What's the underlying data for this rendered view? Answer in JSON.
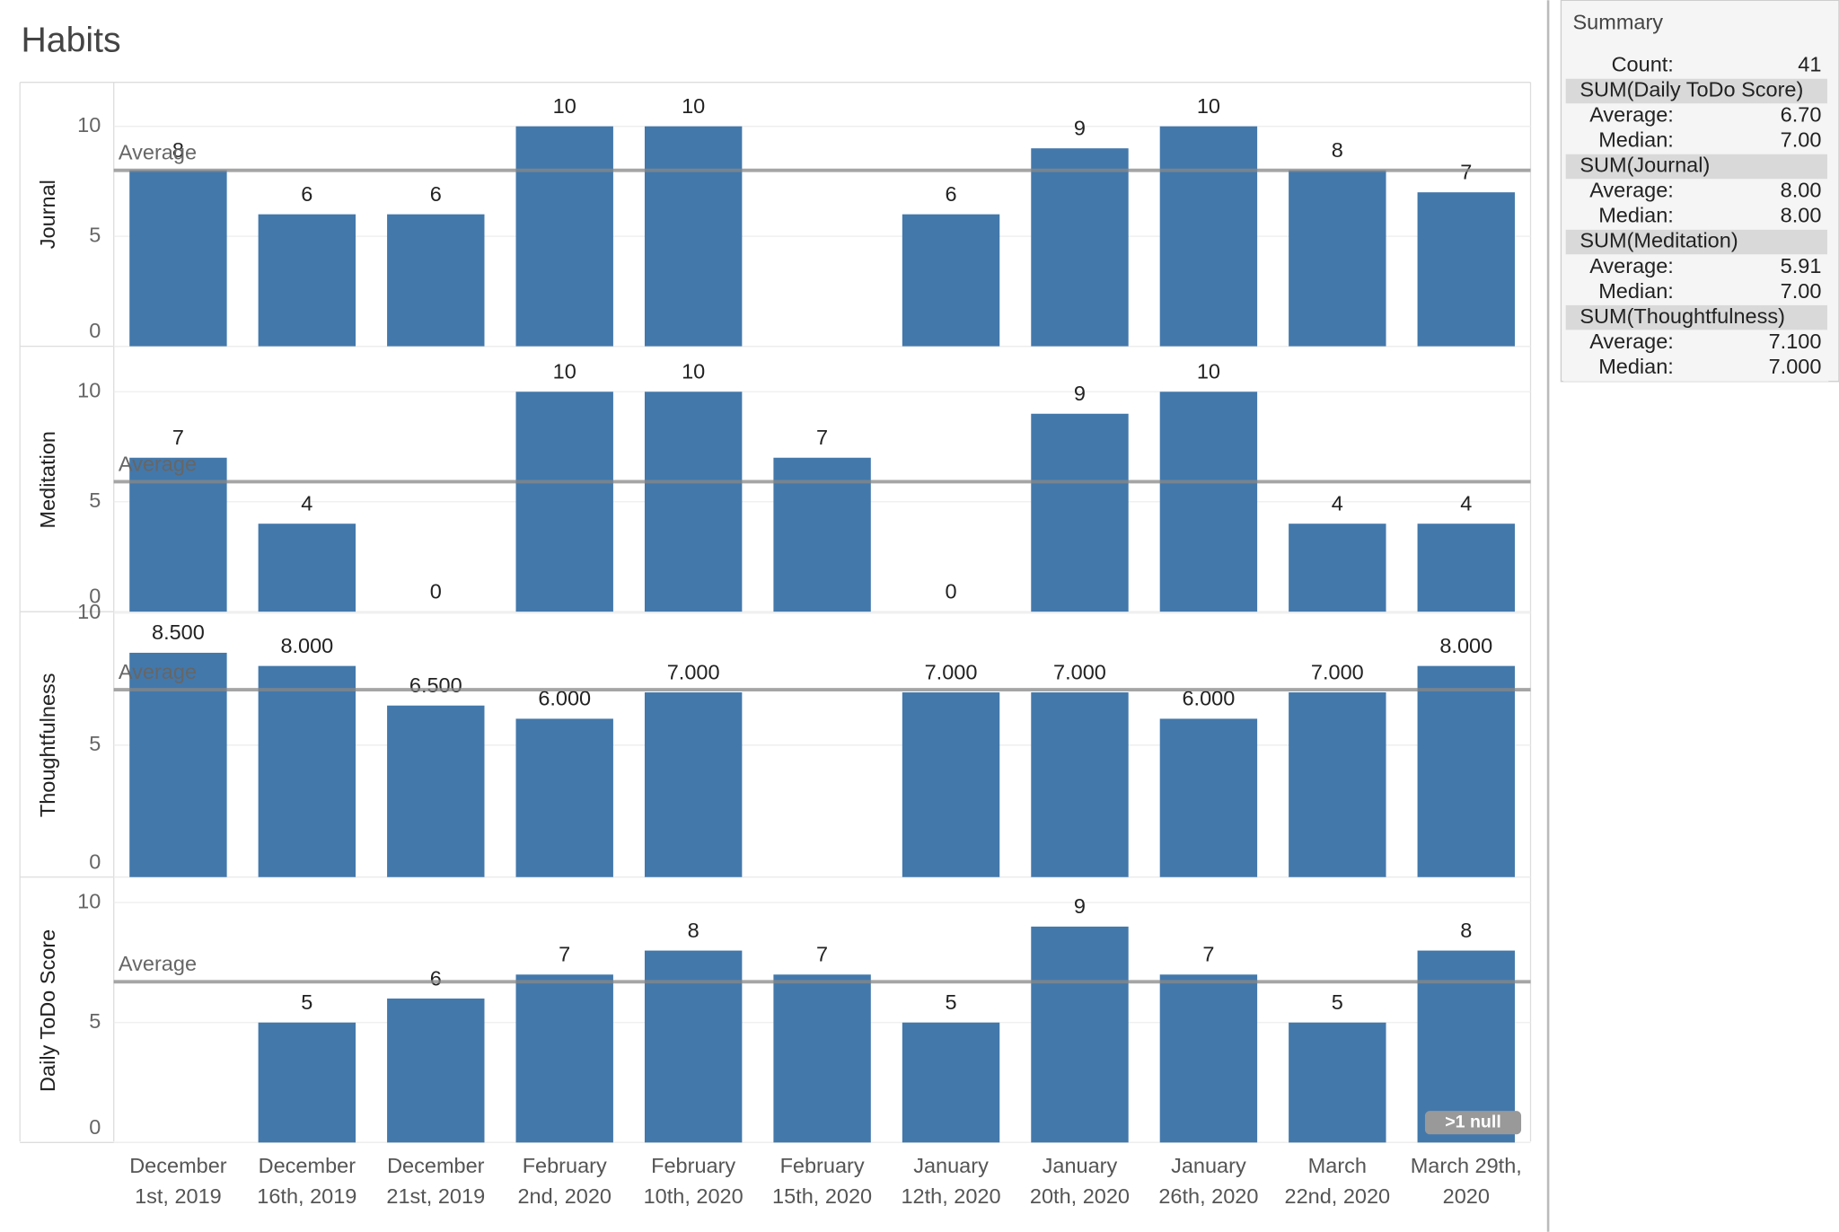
{
  "chart_data": {
    "type": "bar",
    "title": "Habits",
    "color": "#4378ab",
    "categories": [
      "December\n1st, 2019",
      "December\n16th, 2019",
      "December\n21st, 2019",
      "February\n2nd, 2020",
      "February\n10th, 2020",
      "February\n15th, 2020",
      "January\n12th, 2020",
      "January\n20th, 2020",
      "January\n26th, 2020",
      "March\n22nd, 2020",
      "March 29th,\n2020"
    ],
    "average_label": "Average",
    "null_note": ">1 null",
    "panels": [
      {
        "name": "Journal",
        "values": [
          8,
          6,
          6,
          10,
          10,
          null,
          6,
          9,
          10,
          8,
          7
        ],
        "ylim": [
          0,
          12
        ],
        "yticks": [
          0,
          5,
          10
        ]
      },
      {
        "name": "Meditation",
        "values": [
          7,
          4,
          0,
          10,
          10,
          7,
          0,
          9,
          10,
          4,
          4
        ],
        "ylim": [
          0,
          12
        ],
        "yticks": [
          0,
          5,
          10
        ]
      },
      {
        "name": "Thoughtfulness",
        "values": [
          8.5,
          8,
          6.5,
          6,
          7,
          null,
          7,
          7,
          6,
          7,
          8
        ],
        "value_labels": [
          "8.500",
          "8.000",
          "6.500",
          "6.000",
          "7.000",
          null,
          "7.000",
          "7.000",
          "6.000",
          "7.000",
          "8.000"
        ],
        "ylim": [
          0,
          10
        ],
        "yticks": [
          0,
          5,
          10
        ]
      },
      {
        "name": "Daily ToDo Score",
        "values": [
          null,
          5,
          6,
          7,
          8,
          7,
          5,
          9,
          7,
          5,
          8
        ],
        "ylim": [
          0,
          11
        ],
        "yticks": [
          0,
          5,
          10
        ]
      }
    ]
  },
  "summary": {
    "title": "Summary",
    "count": {
      "label": "Count:",
      "value": 41
    },
    "groups": [
      {
        "title": "SUM(Daily ToDo Score)",
        "average": {
          "label": "Average:",
          "value": 6.7,
          "value_label": "6.70"
        },
        "median": {
          "label": "Median:",
          "value": 7,
          "value_label": "7.00"
        }
      },
      {
        "title": "SUM(Journal)",
        "average": {
          "label": "Average:",
          "value": 8,
          "value_label": "8.00"
        },
        "median": {
          "label": "Median:",
          "value": 8,
          "value_label": "8.00"
        }
      },
      {
        "title": "SUM(Meditation)",
        "average": {
          "label": "Average:",
          "value": 5.91
        },
        "median": {
          "label": "Median:",
          "value": 7,
          "value_label": "7.00"
        }
      },
      {
        "title": "SUM(Thoughtfulness)",
        "average": {
          "label": "Average:",
          "value": 7.1,
          "value_label": "7.100"
        },
        "median": {
          "label": "Median:",
          "value": 7,
          "value_label": "7.000"
        }
      }
    ]
  }
}
